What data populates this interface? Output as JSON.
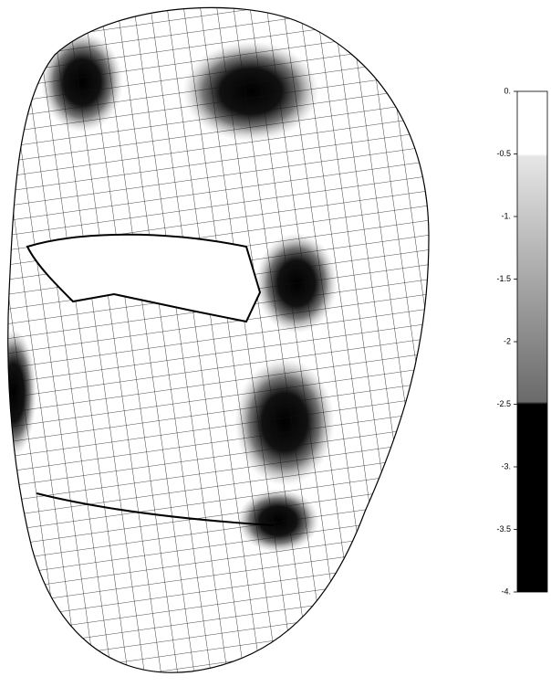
{
  "colorbar": {
    "lim": [
      -4,
      0
    ],
    "ticks": [
      {
        "value": 0,
        "label": "0."
      },
      {
        "value": -0.5,
        "label": "-0.5"
      },
      {
        "value": -1,
        "label": "-1."
      },
      {
        "value": -1.5,
        "label": "-1.5"
      },
      {
        "value": -2,
        "label": "-2"
      },
      {
        "value": -2.5,
        "label": "-2.5"
      },
      {
        "value": -3,
        "label": "-3."
      },
      {
        "value": -3.5,
        "label": "-3.5"
      },
      {
        "value": -4,
        "label": "-4."
      }
    ]
  }
}
